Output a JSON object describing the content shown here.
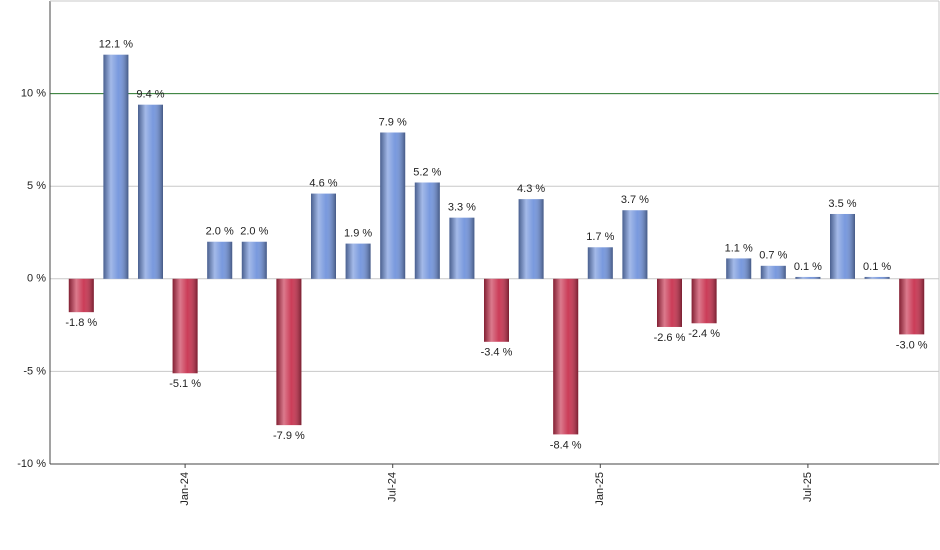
{
  "chart_data": {
    "type": "bar",
    "categories": [
      null,
      null,
      null,
      "Jan-24",
      null,
      null,
      null,
      null,
      null,
      "Jul-24",
      null,
      null,
      null,
      null,
      null,
      "Jan-25",
      null,
      null,
      null,
      null,
      null,
      "Jul-25",
      null,
      null,
      null
    ],
    "values": [
      -1.8,
      12.1,
      9.4,
      -5.1,
      2.0,
      2.0,
      -7.9,
      4.6,
      1.9,
      7.9,
      5.2,
      3.3,
      -3.4,
      4.3,
      -8.4,
      1.7,
      3.7,
      -2.6,
      -2.4,
      1.1,
      0.7,
      0.1,
      3.5,
      0.1,
      -3.0
    ],
    "value_labels": [
      "-1.8 %",
      "12.1 %",
      "9.4 %",
      "-5.1 %",
      "2.0 %",
      "2.0 %",
      "-7.9 %",
      "4.6 %",
      "1.9 %",
      "7.9 %",
      "5.2 %",
      "3.3 %",
      "-3.4 %",
      "4.3 %",
      "-8.4 %",
      "1.7 %",
      "3.7 %",
      "-2.6 %",
      "-2.4 %",
      "1.1 %",
      "0.7 %",
      "0.1 %",
      "3.5 %",
      "0.1 %",
      "-3.0 %"
    ],
    "positive_color": "#7294dc",
    "negative_color": "#c8324f",
    "ylim": [
      -10,
      15
    ],
    "yticks": [
      {
        "value": -10,
        "label": "-10 %"
      },
      {
        "value": -5,
        "label": "-5 %"
      },
      {
        "value": 0,
        "label": "0 %"
      },
      {
        "value": 5,
        "label": "5 %"
      },
      {
        "value": 10,
        "label": "10 %"
      }
    ],
    "grid": true,
    "reference_line": {
      "value": 10,
      "color": "#2e7d32"
    }
  }
}
